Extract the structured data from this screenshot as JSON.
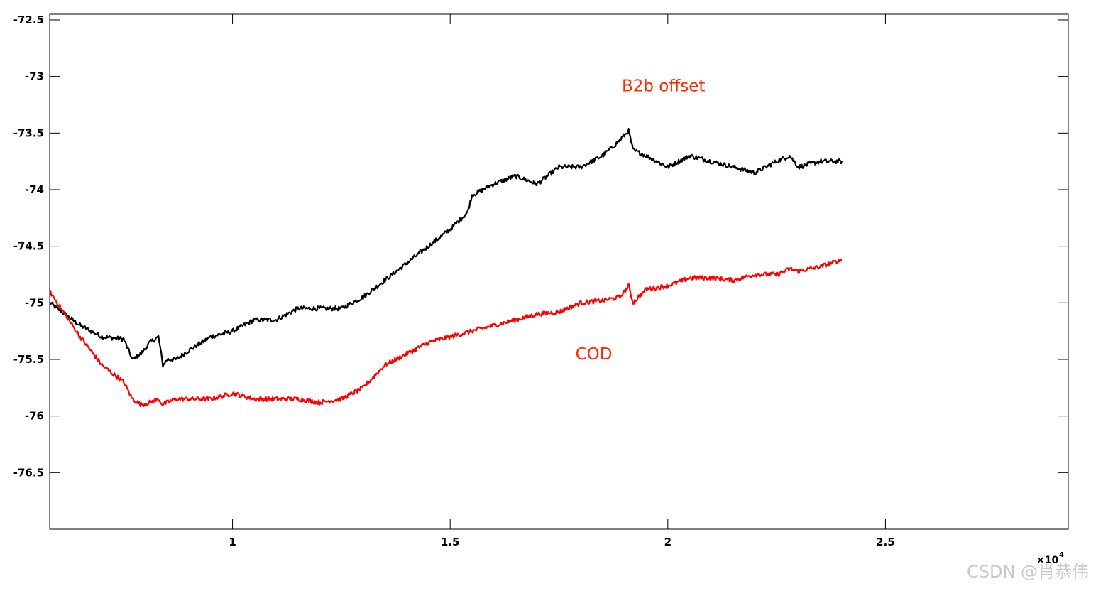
{
  "chart_data": {
    "type": "line",
    "title": "",
    "xlabel": "",
    "ylabel": "",
    "xlim": [
      5800,
      29200
    ],
    "ylim": [
      -77.0,
      -72.45
    ],
    "x_multiplier_label": "×10",
    "x_multiplier_exponent": "4",
    "grid": false,
    "legend": "none",
    "x_ticks": [
      {
        "value": 10000,
        "label": "1"
      },
      {
        "value": 15000,
        "label": "1.5"
      },
      {
        "value": 20000,
        "label": "2"
      },
      {
        "value": 25000,
        "label": "2.5"
      }
    ],
    "y_ticks": [
      {
        "value": -72.5,
        "label": "-72.5"
      },
      {
        "value": -73,
        "label": "-73"
      },
      {
        "value": -73.5,
        "label": "-73.5"
      },
      {
        "value": -74,
        "label": "-74"
      },
      {
        "value": -74.5,
        "label": "-74.5"
      },
      {
        "value": -75,
        "label": "-75"
      },
      {
        "value": -75.5,
        "label": "-75.5"
      },
      {
        "value": -76,
        "label": "-76"
      },
      {
        "value": -76.5,
        "label": "-76.5"
      }
    ],
    "series": [
      {
        "color": "#000000",
        "noise": 0.02,
        "x": [
          5800,
          6500,
          7000,
          7500,
          7700,
          7900,
          8100,
          8300,
          8400,
          8500,
          8700,
          9000,
          9500,
          10000,
          10500,
          11000,
          11500,
          12000,
          12500,
          13000,
          13500,
          14000,
          14500,
          15000,
          15400,
          15500,
          16000,
          16500,
          17000,
          17500,
          18000,
          18500,
          18800,
          19000,
          19100,
          19200,
          19500,
          20000,
          20500,
          21000,
          21500,
          22000,
          22500,
          22800,
          23000,
          23500,
          24000
        ],
        "y": [
          -75.0,
          -75.2,
          -75.3,
          -75.32,
          -75.5,
          -75.45,
          -75.35,
          -75.3,
          -75.55,
          -75.5,
          -75.5,
          -75.42,
          -75.3,
          -75.25,
          -75.15,
          -75.15,
          -75.05,
          -75.05,
          -75.05,
          -74.95,
          -74.8,
          -74.65,
          -74.5,
          -74.35,
          -74.2,
          -74.05,
          -73.95,
          -73.88,
          -73.95,
          -73.8,
          -73.8,
          -73.7,
          -73.6,
          -73.52,
          -73.48,
          -73.65,
          -73.7,
          -73.8,
          -73.7,
          -73.75,
          -73.8,
          -73.85,
          -73.75,
          -73.7,
          -73.8,
          -73.75,
          -73.75
        ]
      },
      {
        "color": "#ff0000",
        "noise": 0.02,
        "x": [
          5800,
          6500,
          7000,
          7500,
          7700,
          7900,
          8100,
          8300,
          8400,
          8500,
          8700,
          9000,
          9500,
          10000,
          10500,
          11000,
          11500,
          12000,
          12500,
          13000,
          13500,
          14000,
          14500,
          15000,
          15500,
          16000,
          16500,
          17000,
          17500,
          18000,
          18500,
          18900,
          19100,
          19200,
          19500,
          20000,
          20500,
          21000,
          21500,
          22000,
          22500,
          22800,
          23000,
          23500,
          24000
        ],
        "y": [
          -74.9,
          -75.3,
          -75.55,
          -75.7,
          -75.85,
          -75.9,
          -75.88,
          -75.85,
          -75.9,
          -75.88,
          -75.85,
          -75.85,
          -75.85,
          -75.8,
          -75.85,
          -75.85,
          -75.85,
          -75.88,
          -75.85,
          -75.75,
          -75.55,
          -75.45,
          -75.35,
          -75.3,
          -75.25,
          -75.2,
          -75.15,
          -75.1,
          -75.08,
          -75.0,
          -74.98,
          -74.95,
          -74.85,
          -75.0,
          -74.88,
          -74.85,
          -74.78,
          -74.78,
          -74.8,
          -74.75,
          -74.75,
          -74.7,
          -74.72,
          -74.68,
          -74.62
        ]
      }
    ],
    "annotations": [
      {
        "text": "B2b offset",
        "x": 19900,
        "y": -73.13
      },
      {
        "text": "COD",
        "x": 18300,
        "y": -75.5
      }
    ]
  },
  "watermark": "CSDN @肖恭伟"
}
